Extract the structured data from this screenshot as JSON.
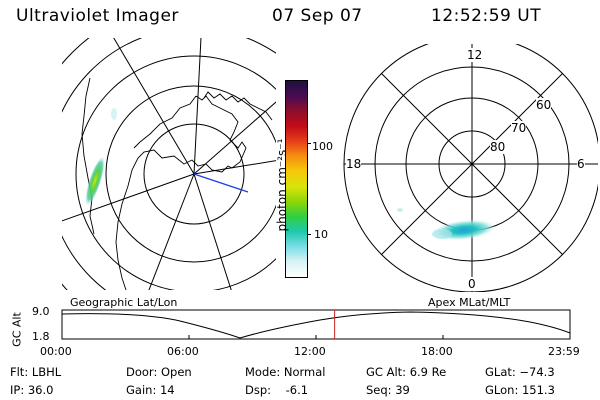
{
  "header": {
    "instrument": "Ultraviolet Imager",
    "date": "07 Sep 07",
    "time": "12:52:59 UT"
  },
  "colorbar": {
    "unit_label": "photon cm⁻²s⁻¹",
    "ticks": [
      "100",
      "10"
    ],
    "colors": [
      "#1e1040",
      "#4a0c52",
      "#8a0e2c",
      "#c20c16",
      "#e8401a",
      "#f58c10",
      "#f6c80a",
      "#d8e40a",
      "#8ad40a",
      "#30d040",
      "#20c8b0",
      "#80e0e8",
      "#d8f2f6",
      "#ffffff"
    ]
  },
  "mlt_plot": {
    "hour_labels": {
      "top": "12",
      "left": "18",
      "right": "6",
      "bottom": "0"
    },
    "lat_labels": [
      "60",
      "70",
      "80"
    ]
  },
  "timeline": {
    "axis_label": "GC Alt",
    "y_ticks": [
      "9.0",
      "1.8"
    ],
    "left_caption": "Geographic Lat/Lon",
    "right_caption": "Apex MLat/MLT",
    "x_ticks": [
      "00:00",
      "06:00",
      "12:00",
      "18:00",
      "23:59"
    ],
    "marker_hour": 12.88,
    "marker_color": "#cc2222"
  },
  "footer": {
    "filter": "Flt: LBHL",
    "ip": "IP: 36.0",
    "door": "Door: Open",
    "gain": "Gain: 14",
    "mode": "Mode: Normal",
    "dsp": "Dsp:    -6.1",
    "gc_alt": "GC Alt: 6.9 Re",
    "seq": "Seq: 39",
    "glat": "GLat: −74.3",
    "glon": "GLon: 151.3"
  }
}
